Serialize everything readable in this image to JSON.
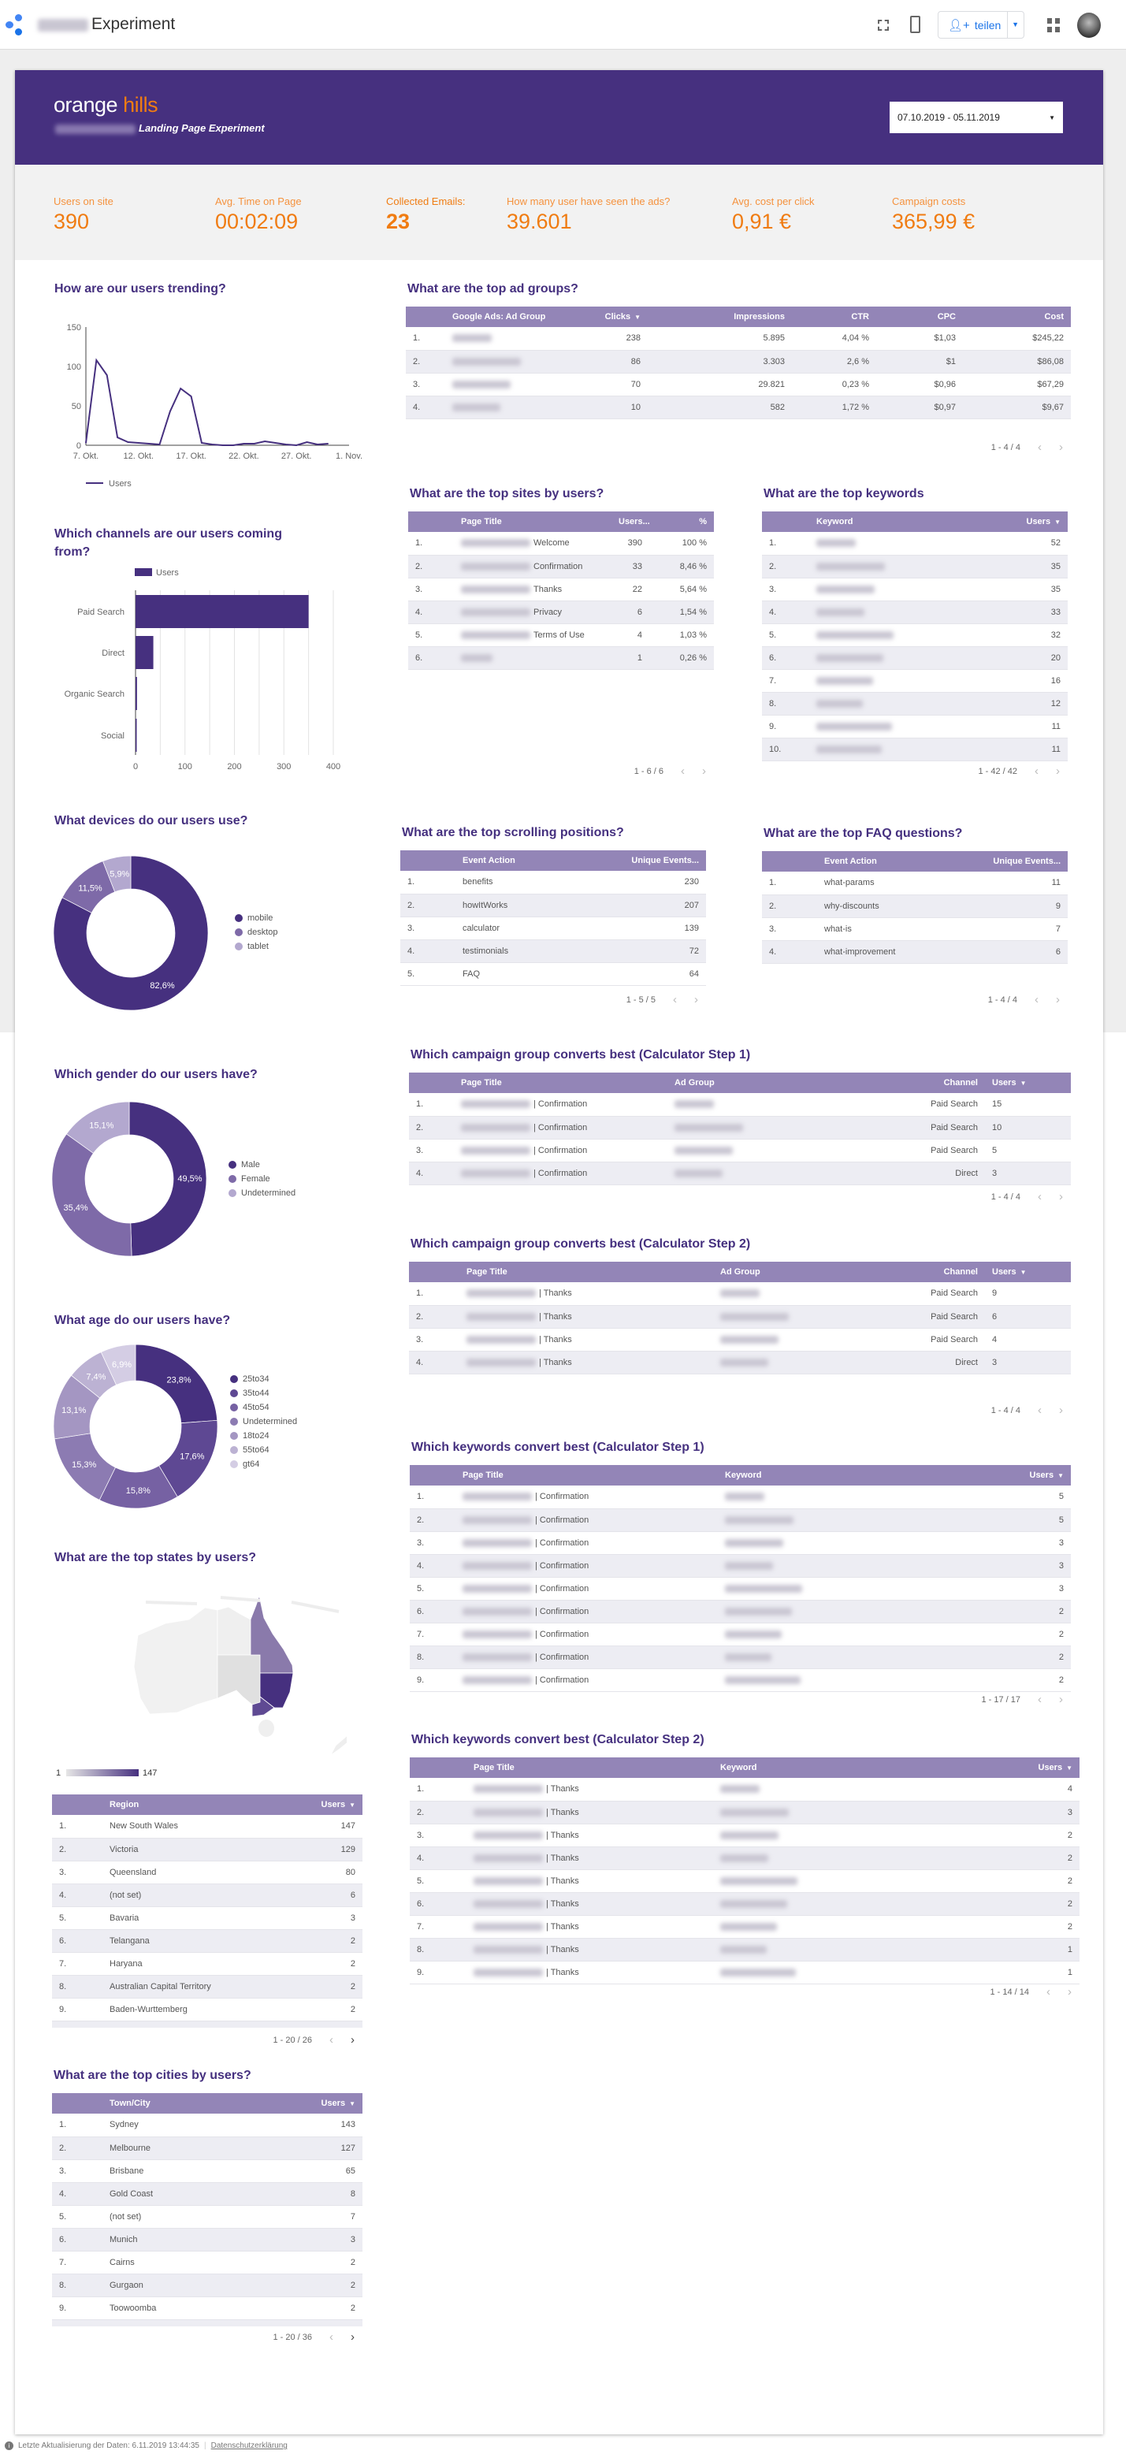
{
  "topbar": {
    "app_title": "Experiment",
    "share_label": "teilen",
    "icons": [
      "data-studio-logo-icon",
      "fullscreen-icon",
      "device-preview-icon",
      "add-person-icon",
      "chevron-down-icon",
      "grid-icon",
      "avatar"
    ],
    "accent_color": "#1a73e8"
  },
  "header": {
    "logo_word1": "orange",
    "logo_word2": "hills",
    "subtitle": "Landing Page Experiment",
    "date_range": "07.10.2019 - 05.11.2019",
    "brand_color": "#46307f",
    "accent_color": "#f07c12"
  },
  "kpis": [
    {
      "label": "Users on site",
      "value": "390"
    },
    {
      "label": "Avg. Time on Page",
      "value": "00:02:09"
    },
    {
      "label": "Collected Emails:",
      "value": "23"
    },
    {
      "label": "How many user have seen the ads?",
      "value": "39.601"
    },
    {
      "label": "Avg. cost per click",
      "value": "0,91 €"
    },
    {
      "label": "Campaign costs",
      "value": "365,99 €"
    }
  ],
  "chart_data": [
    {
      "id": "trend",
      "type": "line",
      "title": "How are our users trending?",
      "x": [
        "2019-10-07",
        "2019-10-08",
        "2019-10-09",
        "2019-10-10",
        "2019-10-11",
        "2019-10-12",
        "2019-10-13",
        "2019-10-14",
        "2019-10-15",
        "2019-10-16",
        "2019-10-17",
        "2019-10-18",
        "2019-10-19",
        "2019-10-20",
        "2019-10-21",
        "2019-10-22",
        "2019-10-23",
        "2019-10-24",
        "2019-10-25",
        "2019-10-26",
        "2019-10-27",
        "2019-10-28",
        "2019-10-29",
        "2019-10-30"
      ],
      "series": [
        {
          "name": "Users",
          "values": [
            3,
            108,
            89,
            10,
            4,
            3,
            2,
            1,
            43,
            72,
            62,
            3,
            1,
            0,
            0,
            2,
            2,
            5,
            3,
            1,
            0,
            4,
            1,
            2
          ],
          "color": "#46307f"
        }
      ],
      "x_ticks": [
        "7. Okt.",
        "12. Okt.",
        "17. Okt.",
        "22. Okt.",
        "27. Okt.",
        "1. Nov."
      ],
      "y_ticks": [
        "0",
        "50",
        "100",
        "150"
      ],
      "ylim": [
        0,
        150
      ],
      "legend": "bottom-left",
      "grid": false
    },
    {
      "id": "channels",
      "type": "bar",
      "orientation": "horizontal",
      "title": "Which channels are our users coming from?",
      "categories": [
        "Paid Search",
        "Direct",
        "Organic Search",
        "Social"
      ],
      "series": [
        {
          "name": "Users",
          "values": [
            350,
            36,
            3,
            2
          ],
          "color": "#46307f"
        }
      ],
      "x_ticks": [
        "0",
        "100",
        "200",
        "300",
        "400"
      ],
      "xlim": [
        0,
        400
      ],
      "legend": "top",
      "grid": true
    },
    {
      "id": "devices",
      "type": "pie",
      "title": "What devices do our users use?",
      "slices": [
        {
          "label": "mobile",
          "value": 82.6,
          "color": "#46307f"
        },
        {
          "label": "desktop",
          "value": 11.5,
          "color": "#7e6aa8"
        },
        {
          "label": "tablet",
          "value": 5.9,
          "color": "#b3a8cf"
        }
      ],
      "legend": "right"
    },
    {
      "id": "gender",
      "type": "pie",
      "title": "Which gender do our users have?",
      "slices": [
        {
          "label": "Male",
          "value": 49.5,
          "color": "#46307f"
        },
        {
          "label": "Female",
          "value": 35.4,
          "color": "#7e6aa8"
        },
        {
          "label": "Undetermined",
          "value": 15.1,
          "color": "#b3a8cf"
        }
      ],
      "legend": "right"
    },
    {
      "id": "age",
      "type": "pie",
      "title": "What age do our users have?",
      "slices": [
        {
          "label": "25to34",
          "value": 23.8,
          "color": "#46307f"
        },
        {
          "label": "35to44",
          "value": 17.6,
          "color": "#5e4893"
        },
        {
          "label": "45to54",
          "value": 15.8,
          "color": "#7661a3"
        },
        {
          "label": "Undetermined",
          "value": 15.3,
          "color": "#8c7bb2"
        },
        {
          "label": "18to24",
          "value": 13.1,
          "color": "#a496c2"
        },
        {
          "label": "55to64",
          "value": 7.4,
          "color": "#bcb2d3"
        },
        {
          "label": "gt64",
          "value": 6.9,
          "color": "#d4cde4"
        }
      ],
      "legend": "right"
    }
  ],
  "map": {
    "title": "What are the top states by users?",
    "scale_min": "1",
    "scale_max": "147",
    "regions": {
      "New South Wales": 147,
      "Victoria": 129,
      "Queensland": 80
    }
  },
  "tables": {
    "adgroups": {
      "title": "What are the top ad groups?",
      "columns": [
        {
          "label": ""
        },
        {
          "label": "Google Ads: Ad Group"
        },
        {
          "label": "Clicks",
          "sorted": true
        },
        {
          "label": "Impressions"
        },
        {
          "label": "CTR"
        },
        {
          "label": "CPC"
        },
        {
          "label": "Cost"
        }
      ],
      "rows": [
        [
          "1.",
          "",
          "238",
          "5.895",
          "4,04 %",
          "$1,03",
          "$245,22"
        ],
        [
          "2.",
          "",
          "86",
          "3.303",
          "2,6 %",
          "$1",
          "$86,08"
        ],
        [
          "3.",
          "",
          "70",
          "29.821",
          "0,23 %",
          "$0,96",
          "$67,29"
        ],
        [
          "4.",
          "",
          "10",
          "582",
          "1,72 %",
          "$0,97",
          "$9,67"
        ]
      ],
      "pagination": "1 - 4 / 4"
    },
    "sites": {
      "title": "What are the top sites by users?",
      "columns": [
        {
          "label": ""
        },
        {
          "label": "Page Title"
        },
        {
          "label": "Users..."
        },
        {
          "label": "%"
        }
      ],
      "rows": [
        [
          "1.",
          "Welcome",
          "390",
          "100 %"
        ],
        [
          "2.",
          "Confirmation",
          "33",
          "8,46 %"
        ],
        [
          "3.",
          "Thanks",
          "22",
          "5,64 %"
        ],
        [
          "4.",
          "Privacy",
          "6",
          "1,54 %"
        ],
        [
          "5.",
          "Terms of Use",
          "4",
          "1,03 %"
        ],
        [
          "6.",
          "",
          "1",
          "0,26 %"
        ]
      ],
      "pagination": "1 - 6 / 6"
    },
    "keywords": {
      "title": "What are the top keywords",
      "columns": [
        {
          "label": ""
        },
        {
          "label": "Keyword"
        },
        {
          "label": "Users",
          "sorted": true
        }
      ],
      "rows": [
        [
          "1.",
          "",
          "52"
        ],
        [
          "2.",
          "",
          "35"
        ],
        [
          "3.",
          "",
          "35"
        ],
        [
          "4.",
          "",
          "33"
        ],
        [
          "5.",
          "",
          "32"
        ],
        [
          "6.",
          "",
          "20"
        ],
        [
          "7.",
          "",
          "16"
        ],
        [
          "8.",
          "",
          "12"
        ],
        [
          "9.",
          "",
          "11"
        ],
        [
          "10.",
          "",
          "11"
        ]
      ],
      "pagination": "1 - 42 / 42"
    },
    "scrolling": {
      "title": "What are the top scrolling positions?",
      "columns": [
        {
          "label": ""
        },
        {
          "label": "Event Action"
        },
        {
          "label": "Unique Events..."
        }
      ],
      "rows": [
        [
          "1.",
          "benefits",
          "230"
        ],
        [
          "2.",
          "howItWorks",
          "207"
        ],
        [
          "3.",
          "calculator",
          "139"
        ],
        [
          "4.",
          "testimonials",
          "72"
        ],
        [
          "5.",
          "FAQ",
          "64"
        ]
      ],
      "pagination": "1 - 5 / 5"
    },
    "faq": {
      "title": "What are the top FAQ questions?",
      "columns": [
        {
          "label": ""
        },
        {
          "label": "Event Action"
        },
        {
          "label": "Unique Events..."
        }
      ],
      "rows": [
        [
          "1.",
          "what-params",
          "11"
        ],
        [
          "2.",
          "why-discounts",
          "9"
        ],
        [
          "3.",
          "what-is",
          "7"
        ],
        [
          "4.",
          "what-improvement",
          "6"
        ]
      ],
      "pagination": "1 - 4 / 4"
    },
    "camp1": {
      "title": "Which campaign group converts best (Calculator Step 1)",
      "columns": [
        {
          "label": ""
        },
        {
          "label": "Page Title"
        },
        {
          "label": "Ad Group"
        },
        {
          "label": "Channel"
        },
        {
          "label": "Users",
          "sorted": true
        }
      ],
      "rows": [
        [
          "1.",
          "| Confirmation",
          "",
          "Paid Search",
          "15"
        ],
        [
          "2.",
          "| Confirmation",
          "",
          "Paid Search",
          "10"
        ],
        [
          "3.",
          "| Confirmation",
          "",
          "Paid Search",
          "5"
        ],
        [
          "4.",
          "| Confirmation",
          "",
          "Direct",
          "3"
        ]
      ],
      "pagination": "1 - 4 / 4"
    },
    "camp2": {
      "title": "Which campaign group converts best (Calculator Step 2)",
      "columns": [
        {
          "label": ""
        },
        {
          "label": "Page Title"
        },
        {
          "label": "Ad Group"
        },
        {
          "label": "Channel"
        },
        {
          "label": "Users",
          "sorted": true
        }
      ],
      "rows": [
        [
          "1.",
          "| Thanks",
          "",
          "Paid Search",
          "9"
        ],
        [
          "2.",
          "| Thanks",
          "",
          "Paid Search",
          "6"
        ],
        [
          "3.",
          "| Thanks",
          "",
          "Paid Search",
          "4"
        ],
        [
          "4.",
          "| Thanks",
          "",
          "Direct",
          "3"
        ]
      ],
      "pagination": "1 - 4 / 4"
    },
    "kw1": {
      "title": "Which keywords convert best (Calculator Step 1)",
      "columns": [
        {
          "label": ""
        },
        {
          "label": "Page Title"
        },
        {
          "label": "Keyword"
        },
        {
          "label": "Users",
          "sorted": true
        }
      ],
      "rows": [
        [
          "1.",
          "| Confirmation",
          "",
          "5"
        ],
        [
          "2.",
          "| Confirmation",
          "",
          "5"
        ],
        [
          "3.",
          "| Confirmation",
          "",
          "3"
        ],
        [
          "4.",
          "| Confirmation",
          "",
          "3"
        ],
        [
          "5.",
          "| Confirmation",
          "",
          "3"
        ],
        [
          "6.",
          "| Confirmation",
          "",
          "2"
        ],
        [
          "7.",
          "| Confirmation",
          "",
          "2"
        ],
        [
          "8.",
          "| Confirmation",
          "",
          "2"
        ],
        [
          "9.",
          "| Confirmation",
          "",
          "2"
        ]
      ],
      "pagination": "1 - 17 / 17"
    },
    "kw2": {
      "title": "Which keywords convert best (Calculator Step 2)",
      "columns": [
        {
          "label": ""
        },
        {
          "label": "Page Title"
        },
        {
          "label": "Keyword"
        },
        {
          "label": "Users",
          "sorted": true
        }
      ],
      "rows": [
        [
          "1.",
          "| Thanks",
          "",
          "4"
        ],
        [
          "2.",
          "| Thanks",
          "",
          "3"
        ],
        [
          "3.",
          "| Thanks",
          "",
          "2"
        ],
        [
          "4.",
          "| Thanks",
          "",
          "2"
        ],
        [
          "5.",
          "| Thanks",
          "",
          "2"
        ],
        [
          "6.",
          "| Thanks",
          "",
          "2"
        ],
        [
          "7.",
          "| Thanks",
          "",
          "2"
        ],
        [
          "8.",
          "| Thanks",
          "",
          "1"
        ],
        [
          "9.",
          "| Thanks",
          "",
          "1"
        ]
      ],
      "pagination": "1 - 14 / 14"
    },
    "states": {
      "title": "",
      "columns": [
        {
          "label": ""
        },
        {
          "label": "Region"
        },
        {
          "label": "Users",
          "sorted": true
        }
      ],
      "rows": [
        [
          "1.",
          "New South Wales",
          "147"
        ],
        [
          "2.",
          "Victoria",
          "129"
        ],
        [
          "3.",
          "Queensland",
          "80"
        ],
        [
          "4.",
          "(not set)",
          "6"
        ],
        [
          "5.",
          "Bavaria",
          "3"
        ],
        [
          "6.",
          "Telangana",
          "2"
        ],
        [
          "7.",
          "Haryana",
          "2"
        ],
        [
          "8.",
          "Australian Capital Territory",
          "2"
        ],
        [
          "9.",
          "Baden-Wurttemberg",
          "2"
        ]
      ],
      "pagination": "1 - 20 / 26"
    },
    "cities": {
      "title": "What are the top cities by users?",
      "columns": [
        {
          "label": ""
        },
        {
          "label": "Town/City"
        },
        {
          "label": "Users",
          "sorted": true
        }
      ],
      "rows": [
        [
          "1.",
          "Sydney",
          "143"
        ],
        [
          "2.",
          "Melbourne",
          "127"
        ],
        [
          "3.",
          "Brisbane",
          "65"
        ],
        [
          "4.",
          "Gold Coast",
          "8"
        ],
        [
          "5.",
          "(not set)",
          "7"
        ],
        [
          "6.",
          "Munich",
          "3"
        ],
        [
          "7.",
          "Cairns",
          "2"
        ],
        [
          "8.",
          "Gurgaon",
          "2"
        ],
        [
          "9.",
          "Toowoomba",
          "2"
        ]
      ],
      "pagination": "1 - 20 / 36"
    }
  },
  "footer": {
    "last_update": "Letzte Aktualisierung der Daten: 6.11.2019 13:44:35",
    "privacy_link": "Datenschutzerklärung"
  }
}
